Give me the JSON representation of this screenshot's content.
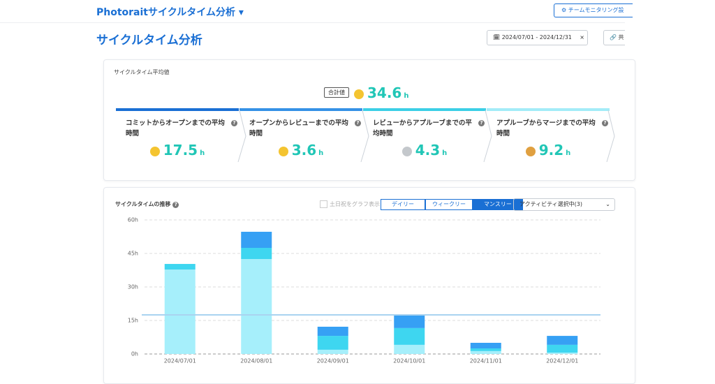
{
  "header": {
    "app_title": "Photoraitサイクルタイム分析",
    "monitor_button": "チームモニタリング設",
    "page_title": "サイクルタイム分析",
    "date_range": "2024/07/01 - 2024/12/31",
    "share_button": "共"
  },
  "summary": {
    "label": "サイクルタイム平均値",
    "total_label": "合計値",
    "total_value": 34.6,
    "unit": "h",
    "stages": [
      {
        "title": "コミットからオープンまでの平均時間",
        "value": 17.5
      },
      {
        "title": "オープンからレビューまでの平均時間",
        "value": 3.6
      },
      {
        "title": "レビューからアプルーブまでの平均時間",
        "value": 4.3
      },
      {
        "title": "アプルーブからマージまでの平均時間",
        "value": 9.2
      }
    ]
  },
  "trend": {
    "title": "サイクルタイムの推移",
    "weekend_toggle": "土日祝をグラフ表示",
    "periods": [
      "デイリー",
      "ウィークリー",
      "マンスリー"
    ],
    "active_period": 2,
    "activity_select": "アクティビティ選択中(3)"
  },
  "chart_data": {
    "type": "stacked_bar",
    "categories": [
      "2024/07/01",
      "2024/08/01",
      "2024/09/01",
      "2024/10/01",
      "2024/11/01",
      "2024/12/01"
    ],
    "series": [
      {
        "color": "#a6effb",
        "values": [
          37.8,
          42.5,
          1.9,
          4.1,
          1.3,
          0.6
        ]
      },
      {
        "color": "#3ed6f0",
        "values": [
          2.5,
          5,
          6.2,
          7.5,
          1.2,
          3.5
        ]
      },
      {
        "color": "#36a0f4",
        "values": [
          0,
          7.2,
          4.1,
          5.6,
          2.5,
          4
        ]
      }
    ],
    "reference_line": 17.5,
    "reference_color": "#a9d3f0",
    "ylim": [
      0,
      60
    ],
    "yticks": [
      {
        "value": 0,
        "label": "0h"
      },
      {
        "value": 15,
        "label": "15h"
      },
      {
        "value": 30,
        "label": "30h"
      },
      {
        "value": 45,
        "label": "45h"
      },
      {
        "value": 60,
        "label": "60h"
      }
    ],
    "grid": true
  }
}
